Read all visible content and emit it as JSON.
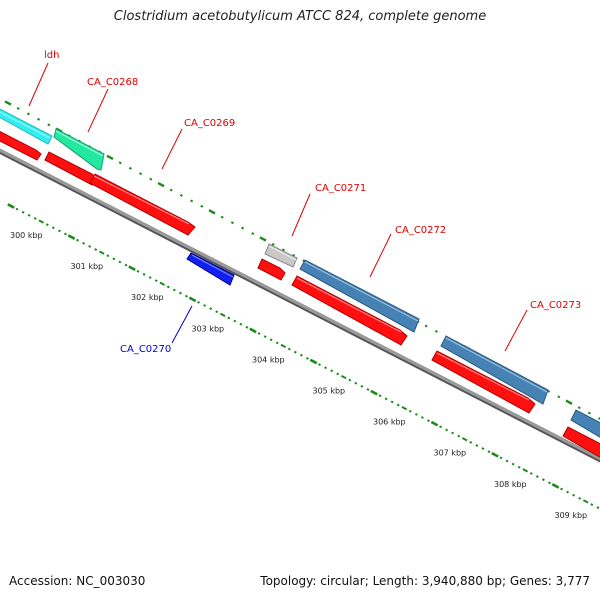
{
  "title": "Clostridium acetobutylicum ATCC 824, complete genome",
  "footer": {
    "accession_label": "Accession:",
    "accession": "NC_003030",
    "topology_label": "Topology:",
    "topology": "circular",
    "length_label": "Length:",
    "length": "3,940,880 bp",
    "genes_label": "Genes:",
    "genes": "3,777"
  },
  "colors": {
    "backbone": "#888888",
    "tick": "#1a8a1a",
    "label_red": "#e00000",
    "label_blue": "#0000cc",
    "cds": "#ff1010",
    "ldh": "#33eeee",
    "CA_C0268": "#22e8a0",
    "CA_C0270": "#1020ee",
    "CA_C0271": "#c0c0c0",
    "CA_C0272": "#4682b4",
    "CA_C0273": "#4682b4"
  },
  "axis": {
    "unit": "kbp",
    "ticks": [
      {
        "kbp": 300,
        "label": "300 kbp"
      },
      {
        "kbp": 301,
        "label": "301 kbp"
      },
      {
        "kbp": 302,
        "label": "302 kbp"
      },
      {
        "kbp": 303,
        "label": "303 kbp"
      },
      {
        "kbp": 304,
        "label": "304 kbp"
      },
      {
        "kbp": 305,
        "label": "305 kbp"
      },
      {
        "kbp": 306,
        "label": "306 kbp"
      },
      {
        "kbp": 307,
        "label": "307 kbp"
      },
      {
        "kbp": 308,
        "label": "308 kbp"
      },
      {
        "kbp": 309,
        "label": "309 kbp"
      }
    ]
  },
  "genes": [
    {
      "label": "ldh",
      "strand": "+"
    },
    {
      "label": "CA_C0268",
      "strand": "+"
    },
    {
      "label": "CA_C0269",
      "strand": "+"
    },
    {
      "label": "CA_C0270",
      "strand": "-"
    },
    {
      "label": "CA_C0271",
      "strand": "+"
    },
    {
      "label": "CA_C0272",
      "strand": "+"
    },
    {
      "label": "CA_C0273",
      "strand": "+"
    }
  ]
}
